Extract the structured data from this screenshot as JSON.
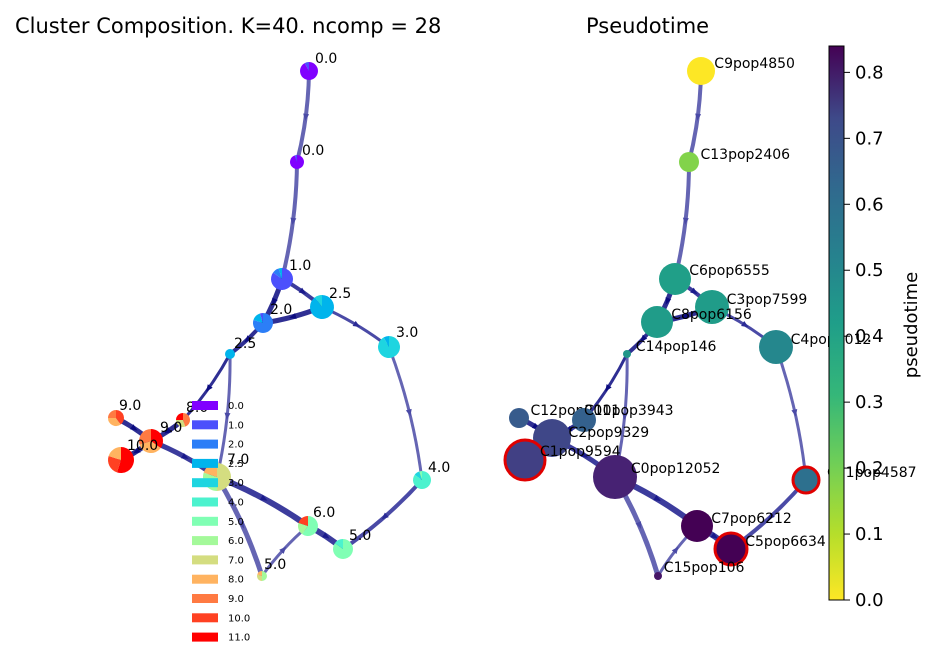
{
  "chart_data": [
    {
      "type": "graph",
      "title": "Cluster Composition. K=40. ncomp = 28",
      "nodes": [
        {
          "id": "c9",
          "label": "0.0"
        },
        {
          "id": "c13",
          "label": "0.0"
        },
        {
          "id": "c6",
          "label": "1.0"
        },
        {
          "id": "c3",
          "label": "2.5"
        },
        {
          "id": "c8",
          "label": "2.0"
        },
        {
          "id": "c14",
          "label": "2.5"
        },
        {
          "id": "c4",
          "label": "3.0"
        },
        {
          "id": "c11",
          "label": "4.0"
        },
        {
          "id": "c12",
          "label": "9.0"
        },
        {
          "id": "c10",
          "label": "8.0"
        },
        {
          "id": "c2",
          "label": "9.0"
        },
        {
          "id": "c1",
          "label": "10.0"
        },
        {
          "id": "c0",
          "label": "7.0"
        },
        {
          "id": "c7",
          "label": "6.0"
        },
        {
          "id": "c5",
          "label": "5.0"
        },
        {
          "id": "c15",
          "label": "5.0"
        }
      ],
      "legend": {
        "entries": [
          "0.0",
          "1.0",
          "2.0",
          "2.5",
          "3.0",
          "4.0",
          "5.0",
          "6.0",
          "7.0",
          "8.0",
          "9.0",
          "10.0",
          "11.0"
        ],
        "colors": [
          "#8000ff",
          "#4c50fc",
          "#2c7ef7",
          "#00b4ec",
          "#1ed5e0",
          "#4cf2ce",
          "#80ffb4",
          "#a4f99a",
          "#d4dd80",
          "#ffb360",
          "#ff7a42",
          "#ff4122",
          "#ff0000"
        ]
      }
    },
    {
      "type": "graph",
      "title": "Pseudotime",
      "nodes": [
        {
          "id": "c9",
          "label": "C9pop4850",
          "pseudotime": 0.0
        },
        {
          "id": "c13",
          "label": "C13pop2406",
          "pseudotime": 0.16
        },
        {
          "id": "c6",
          "label": "C6pop6555",
          "pseudotime": 0.37
        },
        {
          "id": "c3",
          "label": "C3pop7599",
          "pseudotime": 0.38
        },
        {
          "id": "c8",
          "label": "C8pop6156",
          "pseudotime": 0.38
        },
        {
          "id": "c14",
          "label": "C14pop146",
          "pseudotime": 0.4
        },
        {
          "id": "c4",
          "label": "C4pop7012",
          "pseudotime": 0.45
        },
        {
          "id": "c11",
          "label": "C11pop4587",
          "pseudotime": 0.53
        },
        {
          "id": "c12",
          "label": "C12pop2011",
          "pseudotime": 0.6
        },
        {
          "id": "c10",
          "label": "C10pop3943",
          "pseudotime": 0.58
        },
        {
          "id": "c2",
          "label": "C2pop9329",
          "pseudotime": 0.66
        },
        {
          "id": "c1",
          "label": "C1pop9594",
          "pseudotime": 0.68
        },
        {
          "id": "c0",
          "label": "C0pop12052",
          "pseudotime": 0.76
        },
        {
          "id": "c7",
          "label": "C7pop6212",
          "pseudotime": 0.84
        },
        {
          "id": "c5",
          "label": "C5pop6634",
          "pseudotime": 0.84
        },
        {
          "id": "c15",
          "label": "C15pop106",
          "pseudotime": 0.79
        }
      ],
      "colorbar": {
        "label": "pseudotime",
        "range": [
          0.0,
          0.84
        ],
        "ticks": [
          "0.0",
          "0.1",
          "0.2",
          "0.3",
          "0.4",
          "0.5",
          "0.6",
          "0.7",
          "0.8"
        ],
        "colormap": "viridis_r"
      }
    }
  ]
}
